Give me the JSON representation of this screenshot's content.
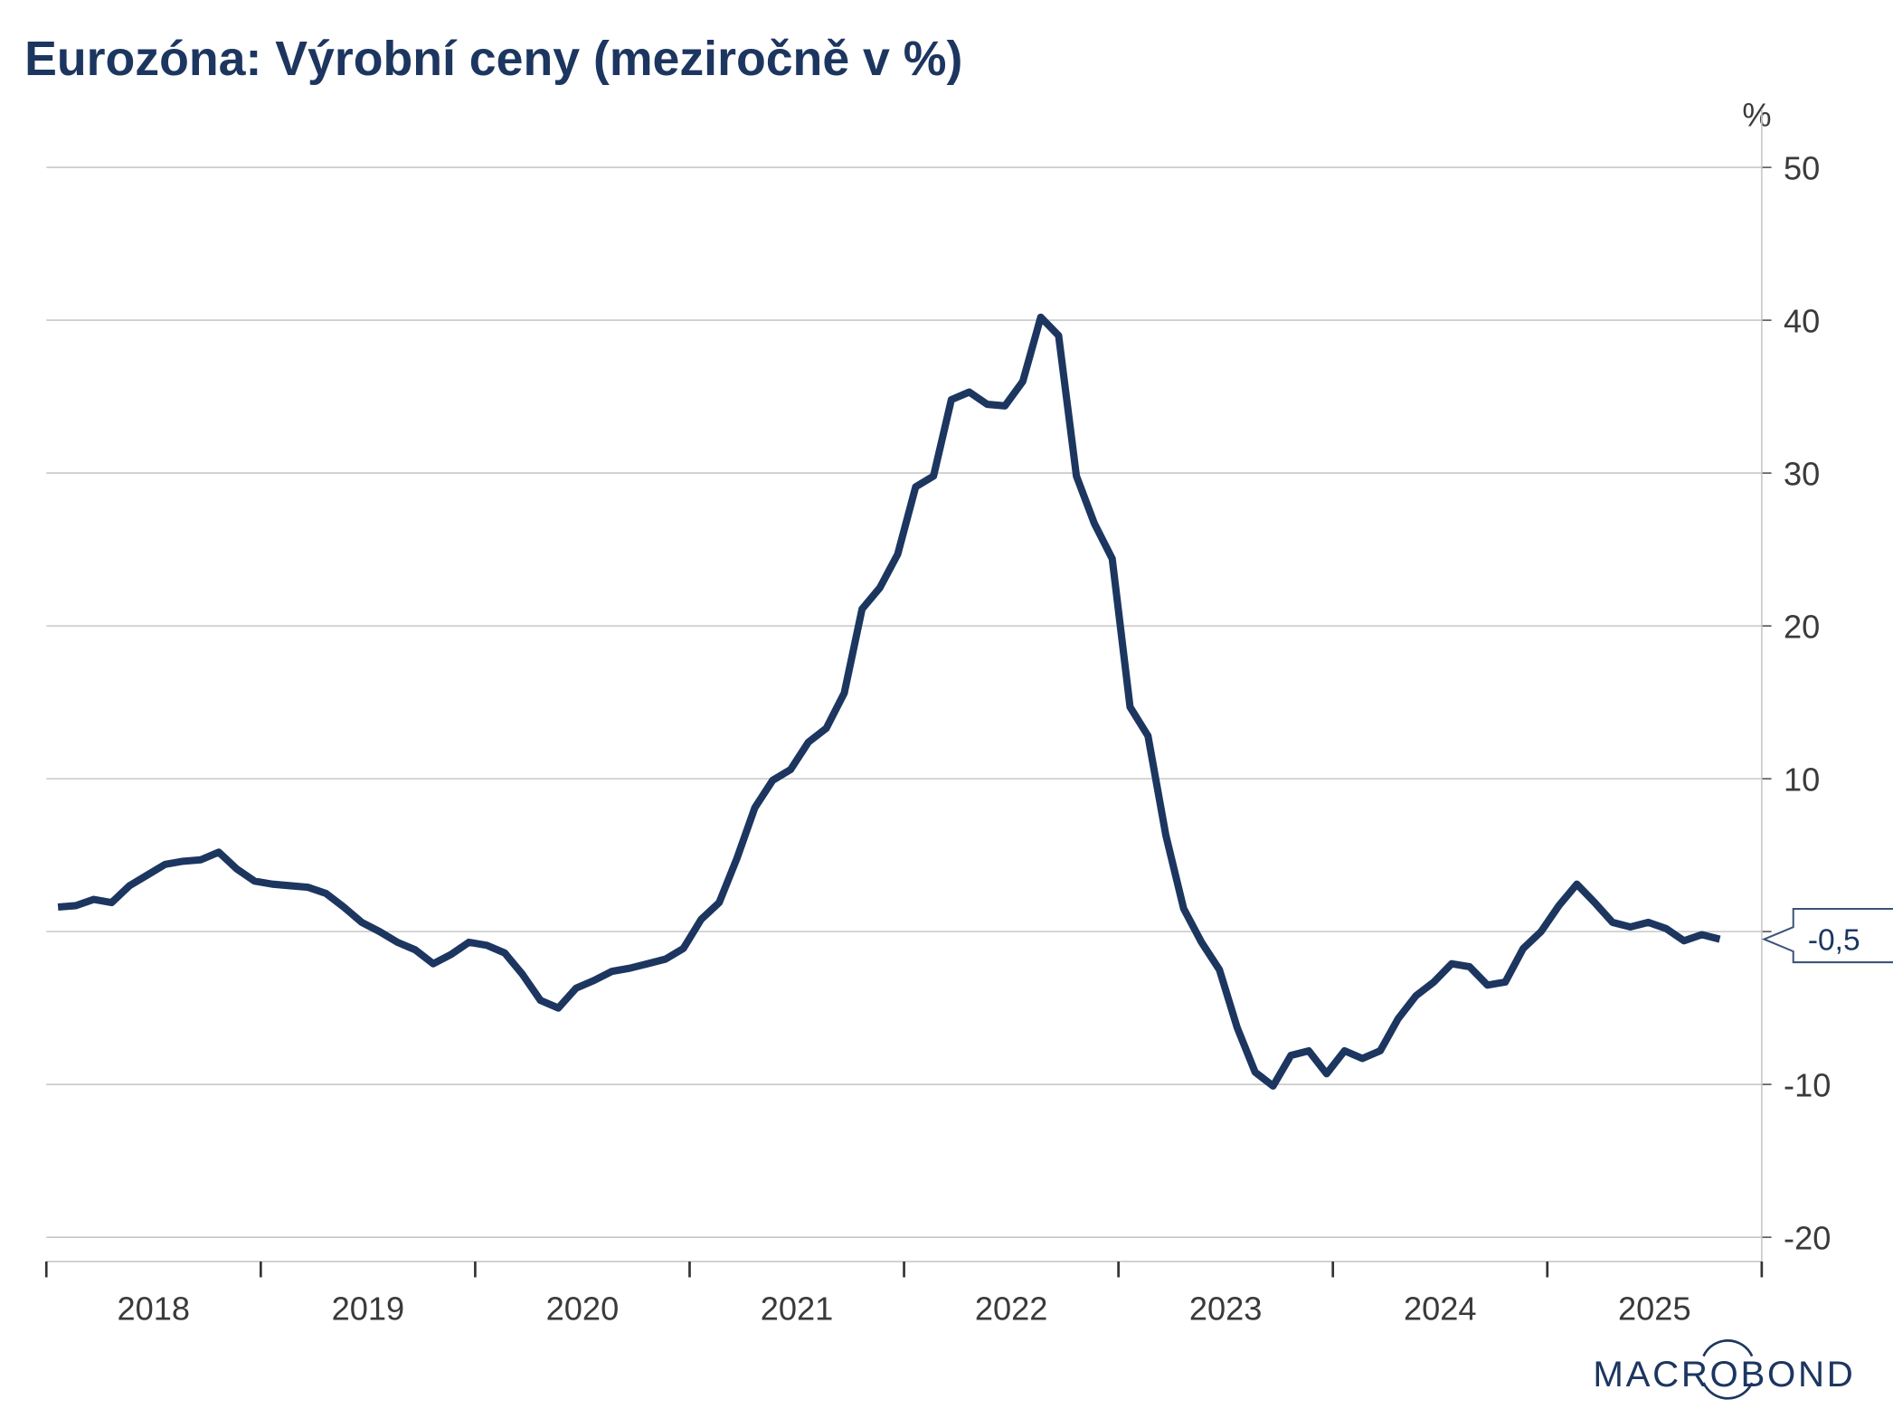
{
  "chart_data": {
    "type": "line",
    "title": "Eurozóna: Výrobní ceny (meziročně v %)",
    "ylabel": "%",
    "xlabel": "",
    "ylim": [
      -20,
      50
    ],
    "yticks": [
      -20,
      -10,
      0,
      10,
      20,
      30,
      40,
      50
    ],
    "ytick_labels": [
      "-20",
      "-10",
      "",
      "10",
      "20",
      "30",
      "40",
      "50"
    ],
    "xticks": [
      "2018",
      "2019",
      "2020",
      "2021",
      "2022",
      "2023",
      "2024",
      "2025"
    ],
    "grid": true,
    "frequency": "monthly",
    "start": "2018-01",
    "series": [
      {
        "name": "Eurozóna: Výrobní ceny",
        "color": "#1c3660",
        "values": [
          1.6,
          1.7,
          2.1,
          1.9,
          3.0,
          3.7,
          4.4,
          4.6,
          4.7,
          5.2,
          4.1,
          3.3,
          3.1,
          3.0,
          2.9,
          2.5,
          1.6,
          0.6,
          0.0,
          -0.7,
          -1.2,
          -2.1,
          -1.5,
          -0.7,
          -0.9,
          -1.4,
          -2.8,
          -4.5,
          -5.0,
          -3.7,
          -3.2,
          -2.6,
          -2.4,
          -2.1,
          -1.8,
          -1.1,
          0.8,
          1.9,
          4.8,
          8.1,
          9.9,
          10.6,
          12.4,
          13.3,
          15.6,
          21.1,
          22.5,
          24.7,
          29.1,
          29.8,
          34.8,
          35.3,
          34.5,
          34.4,
          36.0,
          40.2,
          39.0,
          29.8,
          26.7,
          24.4,
          14.7,
          12.8,
          6.3,
          1.5,
          -0.7,
          -2.5,
          -6.3,
          -9.2,
          -10.1,
          -8.1,
          -7.8,
          -9.3,
          -7.8,
          -8.3,
          -7.8,
          -5.7,
          -4.2,
          -3.3,
          -2.1,
          -2.3,
          -3.5,
          -3.3,
          -1.1,
          0.0,
          1.7,
          3.1,
          1.9,
          0.6,
          0.3,
          0.6,
          0.2,
          -0.6,
          -0.2,
          -0.5
        ]
      }
    ],
    "last_value_label": "-0,5"
  },
  "source_logo": "MACROBOND"
}
